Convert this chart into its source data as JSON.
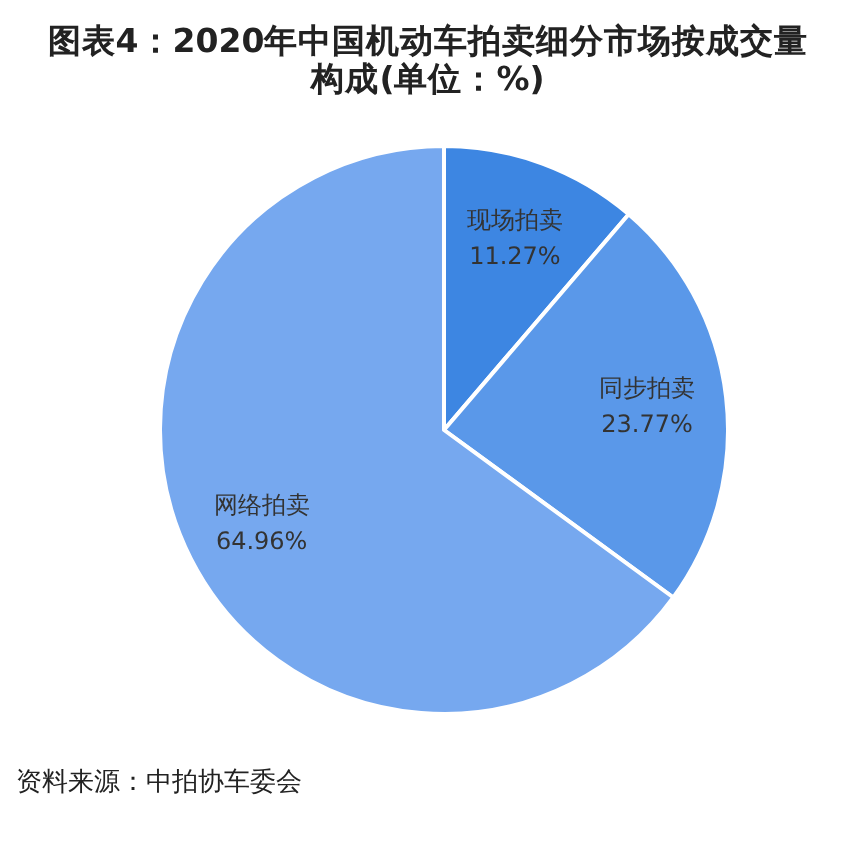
{
  "chart_data": {
    "type": "pie",
    "title": "图表4：2020年中国机动车拍卖细分市场按成交量构成(单位：%)",
    "categories": [
      "现场拍卖",
      "同步拍卖",
      "网络拍卖"
    ],
    "values": [
      11.27,
      23.77,
      64.96
    ],
    "value_labels": [
      "11.27%",
      "23.77%",
      "64.96%"
    ],
    "colors": [
      "#3d86e2",
      "#5a98e9",
      "#76a8ef"
    ],
    "annotations": [
      "资料来源：中拍协车委会"
    ]
  }
}
